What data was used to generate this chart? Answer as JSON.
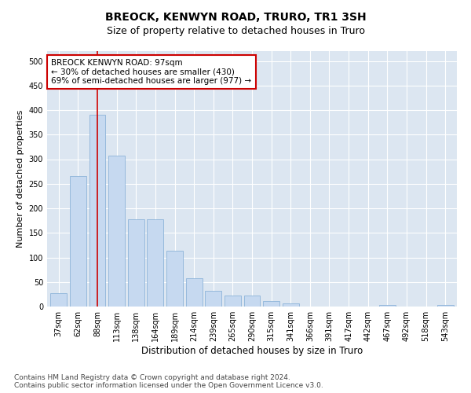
{
  "title": "BREOCK, KENWYN ROAD, TRURO, TR1 3SH",
  "subtitle": "Size of property relative to detached houses in Truro",
  "xlabel": "Distribution of detached houses by size in Truro",
  "ylabel": "Number of detached properties",
  "bins": [
    "37sqm",
    "62sqm",
    "88sqm",
    "113sqm",
    "138sqm",
    "164sqm",
    "189sqm",
    "214sqm",
    "239sqm",
    "265sqm",
    "290sqm",
    "315sqm",
    "341sqm",
    "366sqm",
    "391sqm",
    "417sqm",
    "442sqm",
    "467sqm",
    "492sqm",
    "518sqm",
    "543sqm"
  ],
  "values": [
    27,
    265,
    390,
    307,
    178,
    178,
    113,
    57,
    32,
    23,
    23,
    12,
    6,
    0,
    0,
    0,
    0,
    4,
    0,
    0,
    4
  ],
  "bar_color": "#c6d9f0",
  "bar_edge_color": "#8db3d9",
  "vline_x_index": 2,
  "vline_color": "#cc0000",
  "annotation_line1": "BREOCK KENWYN ROAD: 97sqm",
  "annotation_line2": "← 30% of detached houses are smaller (430)",
  "annotation_line3": "69% of semi-detached houses are larger (977) →",
  "annotation_box_color": "#ffffff",
  "annotation_box_edge_color": "#cc0000",
  "ylim": [
    0,
    520
  ],
  "yticks": [
    0,
    50,
    100,
    150,
    200,
    250,
    300,
    350,
    400,
    450,
    500
  ],
  "footer_line1": "Contains HM Land Registry data © Crown copyright and database right 2024.",
  "footer_line2": "Contains public sector information licensed under the Open Government Licence v3.0.",
  "plot_bg_color": "#dce6f1",
  "title_fontsize": 10,
  "subtitle_fontsize": 9,
  "xlabel_fontsize": 8.5,
  "ylabel_fontsize": 8,
  "tick_fontsize": 7,
  "annotation_fontsize": 7.5,
  "footer_fontsize": 6.5
}
